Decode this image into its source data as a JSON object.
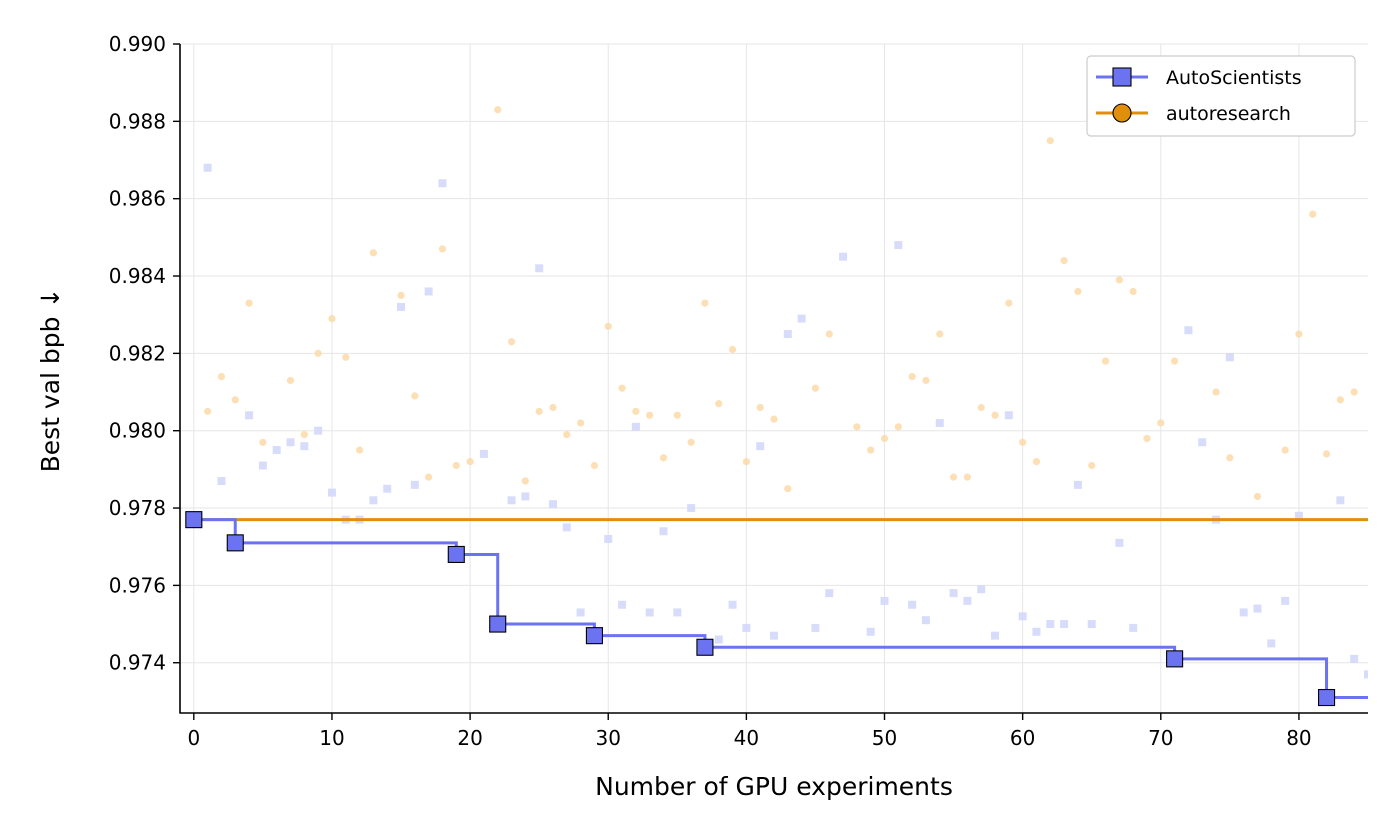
{
  "chart_data": {
    "type": "line",
    "xlabel": "Number of GPU experiments",
    "ylabel": "Best val bpb ↓",
    "xlim": [
      -1,
      85
    ],
    "ylim": [
      0.9727,
      0.99
    ],
    "xticks": [
      0,
      10,
      20,
      30,
      40,
      50,
      60,
      70,
      80
    ],
    "yticks": [
      0.974,
      0.976,
      0.978,
      0.98,
      0.982,
      0.984,
      0.986,
      0.988,
      0.99
    ],
    "xtick_labels": [
      "0",
      "10",
      "20",
      "30",
      "40",
      "50",
      "60",
      "70",
      "80"
    ],
    "ytick_labels": [
      "0.974",
      "0.976",
      "0.978",
      "0.980",
      "0.982",
      "0.984",
      "0.986",
      "0.988",
      "0.990"
    ],
    "grid": true,
    "legend_position": "top-right",
    "series": [
      {
        "name": "AutoScientists",
        "color": "#6b73f0",
        "marker": "square",
        "step_points": [
          {
            "x": 0,
            "y": 0.9777
          },
          {
            "x": 3,
            "y": 0.9771
          },
          {
            "x": 19,
            "y": 0.9768
          },
          {
            "x": 22,
            "y": 0.975
          },
          {
            "x": 29,
            "y": 0.9747
          },
          {
            "x": 37,
            "y": 0.9744
          },
          {
            "x": 71,
            "y": 0.9741
          },
          {
            "x": 82,
            "y": 0.9731
          }
        ],
        "step_end_x": 85,
        "trials": [
          [
            1,
            0.9868
          ],
          [
            2,
            0.9787
          ],
          [
            4,
            0.9804
          ],
          [
            5,
            0.9791
          ],
          [
            6,
            0.9795
          ],
          [
            7,
            0.9797
          ],
          [
            8,
            0.9796
          ],
          [
            9,
            0.98
          ],
          [
            10,
            0.9784
          ],
          [
            11,
            0.9777
          ],
          [
            12,
            0.9777
          ],
          [
            13,
            0.9782
          ],
          [
            14,
            0.9785
          ],
          [
            15,
            0.9832
          ],
          [
            16,
            0.9786
          ],
          [
            17,
            0.9836
          ],
          [
            18,
            0.9864
          ],
          [
            21,
            0.9794
          ],
          [
            23,
            0.9782
          ],
          [
            24,
            0.9783
          ],
          [
            25,
            0.9842
          ],
          [
            26,
            0.9781
          ],
          [
            27,
            0.9775
          ],
          [
            28,
            0.9753
          ],
          [
            30,
            0.9772
          ],
          [
            31,
            0.9755
          ],
          [
            32,
            0.9801
          ],
          [
            33,
            0.9753
          ],
          [
            34,
            0.9774
          ],
          [
            35,
            0.9753
          ],
          [
            36,
            0.978
          ],
          [
            38,
            0.9746
          ],
          [
            39,
            0.9755
          ],
          [
            40,
            0.9749
          ],
          [
            41,
            0.9796
          ],
          [
            42,
            0.9747
          ],
          [
            43,
            0.9825
          ],
          [
            44,
            0.9829
          ],
          [
            45,
            0.9749
          ],
          [
            46,
            0.9758
          ],
          [
            47,
            0.9845
          ],
          [
            49,
            0.9748
          ],
          [
            50,
            0.9756
          ],
          [
            51,
            0.9848
          ],
          [
            52,
            0.9755
          ],
          [
            53,
            0.9751
          ],
          [
            54,
            0.9802
          ],
          [
            55,
            0.9758
          ],
          [
            56,
            0.9756
          ],
          [
            57,
            0.9759
          ],
          [
            58,
            0.9747
          ],
          [
            59,
            0.9804
          ],
          [
            60,
            0.9752
          ],
          [
            61,
            0.9748
          ],
          [
            62,
            0.975
          ],
          [
            63,
            0.975
          ],
          [
            64,
            0.9786
          ],
          [
            65,
            0.975
          ],
          [
            67,
            0.9771
          ],
          [
            68,
            0.9749
          ],
          [
            72,
            0.9826
          ],
          [
            73,
            0.9797
          ],
          [
            74,
            0.9777
          ],
          [
            75,
            0.9819
          ],
          [
            76,
            0.9753
          ],
          [
            77,
            0.9754
          ],
          [
            78,
            0.9745
          ],
          [
            79,
            0.9756
          ],
          [
            80,
            0.9778
          ],
          [
            83,
            0.9782
          ],
          [
            84,
            0.9741
          ],
          [
            85,
            0.9737
          ]
        ]
      },
      {
        "name": "autoresearch",
        "color": "#e08f0b",
        "marker": "circle",
        "best_value": 0.9777,
        "trials": [
          [
            1,
            0.9805
          ],
          [
            2,
            0.9814
          ],
          [
            3,
            0.9808
          ],
          [
            4,
            0.9833
          ],
          [
            5,
            0.9797
          ],
          [
            7,
            0.9813
          ],
          [
            8,
            0.9799
          ],
          [
            9,
            0.982
          ],
          [
            10,
            0.9829
          ],
          [
            11,
            0.9819
          ],
          [
            12,
            0.9795
          ],
          [
            13,
            0.9846
          ],
          [
            15,
            0.9835
          ],
          [
            16,
            0.9809
          ],
          [
            17,
            0.9788
          ],
          [
            18,
            0.9847
          ],
          [
            19,
            0.9791
          ],
          [
            20,
            0.9792
          ],
          [
            22,
            0.9883
          ],
          [
            23,
            0.9823
          ],
          [
            24,
            0.9787
          ],
          [
            25,
            0.9805
          ],
          [
            26,
            0.9806
          ],
          [
            27,
            0.9799
          ],
          [
            28,
            0.9802
          ],
          [
            29,
            0.9791
          ],
          [
            30,
            0.9827
          ],
          [
            31,
            0.9811
          ],
          [
            32,
            0.9805
          ],
          [
            33,
            0.9804
          ],
          [
            34,
            0.9793
          ],
          [
            35,
            0.9804
          ],
          [
            36,
            0.9797
          ],
          [
            37,
            0.9833
          ],
          [
            38,
            0.9807
          ],
          [
            39,
            0.9821
          ],
          [
            40,
            0.9792
          ],
          [
            41,
            0.9806
          ],
          [
            42,
            0.9803
          ],
          [
            43,
            0.9785
          ],
          [
            45,
            0.9811
          ],
          [
            46,
            0.9825
          ],
          [
            48,
            0.9801
          ],
          [
            49,
            0.9795
          ],
          [
            50,
            0.9798
          ],
          [
            51,
            0.9801
          ],
          [
            52,
            0.9814
          ],
          [
            53,
            0.9813
          ],
          [
            54,
            0.9825
          ],
          [
            55,
            0.9788
          ],
          [
            56,
            0.9788
          ],
          [
            57,
            0.9806
          ],
          [
            58,
            0.9804
          ],
          [
            59,
            0.9833
          ],
          [
            60,
            0.9797
          ],
          [
            61,
            0.9792
          ],
          [
            62,
            0.9875
          ],
          [
            63,
            0.9844
          ],
          [
            64,
            0.9836
          ],
          [
            65,
            0.9791
          ],
          [
            66,
            0.9818
          ],
          [
            67,
            0.9839
          ],
          [
            68,
            0.9836
          ],
          [
            69,
            0.9798
          ],
          [
            70,
            0.9802
          ],
          [
            71,
            0.9818
          ],
          [
            74,
            0.981
          ],
          [
            75,
            0.9793
          ],
          [
            77,
            0.9783
          ],
          [
            79,
            0.9795
          ],
          [
            80,
            0.9825
          ],
          [
            81,
            0.9856
          ],
          [
            82,
            0.9794
          ],
          [
            83,
            0.9808
          ],
          [
            84,
            0.981
          ]
        ]
      }
    ]
  }
}
